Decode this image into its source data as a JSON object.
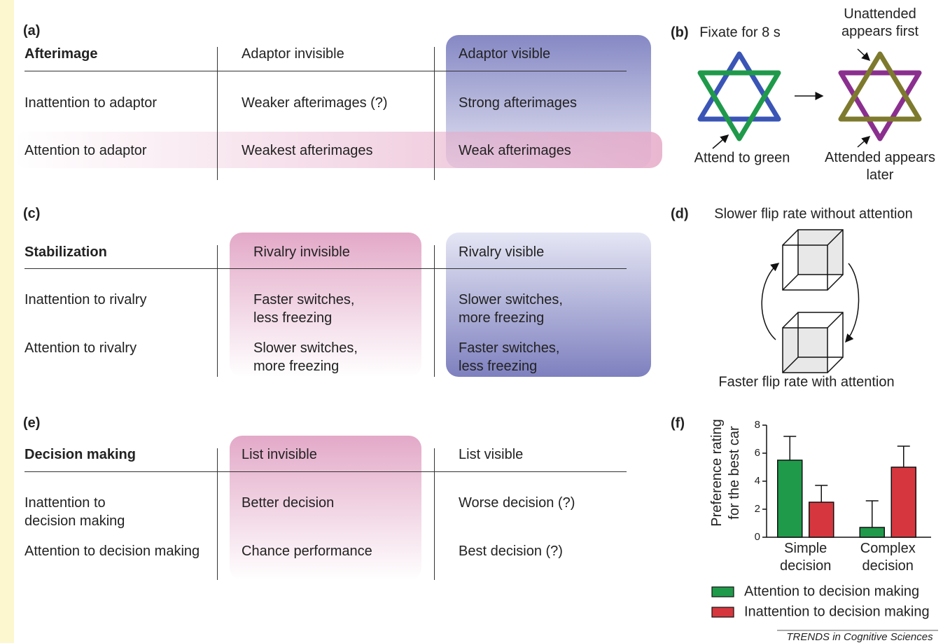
{
  "panels": {
    "a": {
      "label": "(a)",
      "header": [
        "Afterimage",
        "Adaptor invisible",
        "Adaptor visible"
      ],
      "rows": [
        [
          "Inattention to adaptor",
          "Weaker afterimages (?)",
          "Strong afterimages"
        ],
        [
          "Attention to adaptor",
          "Weakest afterimages",
          "Weak afterimages"
        ]
      ]
    },
    "c": {
      "label": "(c)",
      "header": [
        "Stabilization",
        "Rivalry invisible",
        "Rivalry visible"
      ],
      "rows": [
        [
          "Inattention to rivalry",
          "Faster switches,\nless freezing",
          "Slower switches,\nmore freezing"
        ],
        [
          "Attention to rivalry",
          "Slower switches,\nmore freezing",
          "Faster switches,\nless freezing"
        ]
      ]
    },
    "e": {
      "label": "(e)",
      "header": [
        "Decision making",
        "List invisible",
        "List visible"
      ],
      "rows": [
        [
          "Inattention to\ndecision making",
          "Better decision",
          "Worse decision (?)"
        ],
        [
          "Attention to decision making",
          "Chance performance",
          "Best decision (?)"
        ]
      ]
    },
    "b": {
      "label": "(b)",
      "caption": "Fixate for 8 s",
      "top_right": "Unattended\nappears first",
      "bottom_left": "Attend to green",
      "bottom_right": "Attended appears\nlater"
    },
    "d": {
      "label": "(d)",
      "top": "Slower flip rate without attention",
      "bottom": "Faster flip rate with attention"
    },
    "f": {
      "label": "(f)"
    }
  },
  "chart_data": {
    "type": "bar",
    "categories": [
      "Simple\ndecision",
      "Complex\ndecision"
    ],
    "y_label": "Preference rating\nfor the best car",
    "series": [
      {
        "name": "Attention to decision making",
        "color": "#1f9a4a",
        "values": [
          5.5,
          0.7
        ],
        "errors": [
          1.7,
          1.9
        ]
      },
      {
        "name": "Inattention to decision making",
        "color": "#d6373f",
        "values": [
          2.5,
          5.0
        ],
        "errors": [
          1.2,
          1.5
        ]
      }
    ],
    "ylim": [
      0,
      8
    ],
    "yticks": [
      0,
      2,
      4,
      6,
      8
    ]
  },
  "footer": "TRENDS in Cognitive Sciences"
}
